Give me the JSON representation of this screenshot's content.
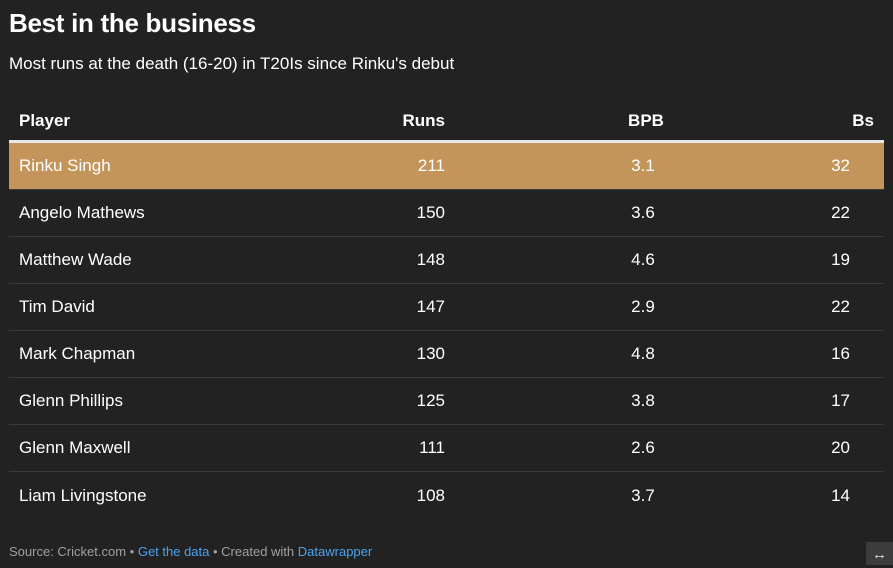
{
  "title": "Best in the business",
  "subtitle": "Most runs at the death (16-20) in T20Is since Rinku's debut",
  "table": {
    "headers": [
      "Player",
      "Runs",
      "BPB",
      "Bs"
    ],
    "highlight_color": "#c4955a",
    "rows": [
      [
        "Rinku Singh",
        "211",
        "3.1",
        "32"
      ],
      [
        "Angelo Mathews",
        "150",
        "3.6",
        "22"
      ],
      [
        "Matthew Wade",
        "148",
        "4.6",
        "19"
      ],
      [
        "Tim David",
        "147",
        "2.9",
        "22"
      ],
      [
        "Mark Chapman",
        "130",
        "4.8",
        "16"
      ],
      [
        "Glenn Phillips",
        "125",
        "3.8",
        "17"
      ],
      [
        "Glenn Maxwell",
        "111",
        "2.6",
        "20"
      ],
      [
        "Liam Livingstone",
        "108",
        "3.7",
        "14"
      ]
    ]
  },
  "footer": {
    "source": "Source: Cricket.com",
    "sep": " • ",
    "get_data": "Get the data",
    "created": "Created with",
    "datawrapper": "Datawrapper"
  },
  "resize_icon": "↔"
}
